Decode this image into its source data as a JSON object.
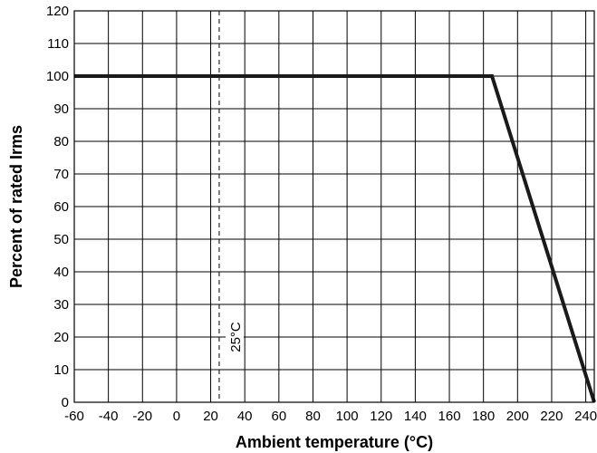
{
  "chart_data": {
    "type": "line",
    "title": "",
    "xlabel": "Ambient temperature (°C)",
    "ylabel": "Percent of rated Irms",
    "xlim": [
      -60,
      245
    ],
    "ylim": [
      0,
      120
    ],
    "grid": true,
    "x_ticks": [
      -60,
      -40,
      -20,
      0,
      20,
      40,
      60,
      80,
      100,
      120,
      140,
      160,
      180,
      200,
      220,
      240
    ],
    "y_ticks": [
      0,
      10,
      20,
      30,
      40,
      50,
      60,
      70,
      80,
      90,
      100,
      110,
      120
    ],
    "series": [
      {
        "x": [
          -60,
          185,
          245
        ],
        "y": [
          100,
          100,
          0
        ],
        "color": "#1a1a1a"
      }
    ],
    "reference_lines": [
      {
        "x": 25,
        "style": "dashed",
        "label": "25°C"
      }
    ]
  }
}
